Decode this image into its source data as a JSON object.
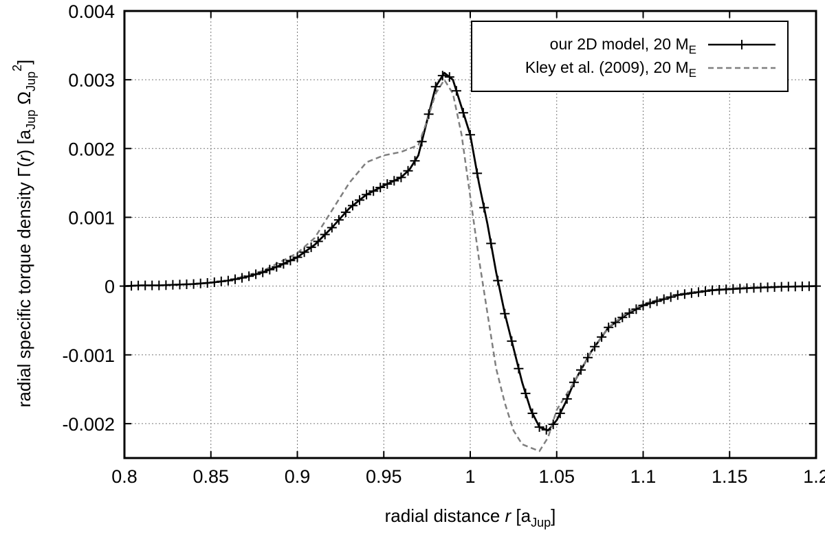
{
  "chart_data": {
    "type": "line",
    "title": "",
    "xlabel": {
      "main": "radial distance ",
      "var": "r",
      "open": " [a",
      "sub": "Jup",
      "close": "]"
    },
    "ylabel": {
      "prefix": "radial specific torque density Γ(",
      "var": "r",
      "mid": ") [a",
      "sub1": "Jup",
      "omega": " Ω",
      "sub2": "Jup",
      "sup": "2",
      "close": "]"
    },
    "xlim": [
      0.8,
      1.2
    ],
    "ylim": [
      -0.0025,
      0.004
    ],
    "grid": true,
    "legend_position": "top-right",
    "x_ticks": [
      {
        "value": 0.8,
        "label": "0.8"
      },
      {
        "value": 0.85,
        "label": "0.85"
      },
      {
        "value": 0.9,
        "label": "0.9"
      },
      {
        "value": 0.95,
        "label": "0.95"
      },
      {
        "value": 1.0,
        "label": "1"
      },
      {
        "value": 1.05,
        "label": "1.05"
      },
      {
        "value": 1.1,
        "label": "1.1"
      },
      {
        "value": 1.15,
        "label": "1.15"
      },
      {
        "value": 1.2,
        "label": "1.2"
      }
    ],
    "y_ticks": [
      {
        "value": -0.002,
        "label": "-0.002"
      },
      {
        "value": -0.001,
        "label": "-0.001"
      },
      {
        "value": 0,
        "label": "0"
      },
      {
        "value": 0.001,
        "label": "0.001"
      },
      {
        "value": 0.002,
        "label": "0.002"
      },
      {
        "value": 0.003,
        "label": "0.003"
      },
      {
        "value": 0.004,
        "label": "0.004"
      }
    ],
    "series": [
      {
        "name": "our 2D model, 20 M",
        "name_sub": "E",
        "style": "solid-with-plus",
        "color": "#000000",
        "points": [
          [
            0.8,
            0.0
          ],
          [
            0.81,
            1e-05
          ],
          [
            0.82,
            1e-05
          ],
          [
            0.83,
            2e-05
          ],
          [
            0.84,
            3e-05
          ],
          [
            0.85,
            5e-05
          ],
          [
            0.86,
            8e-05
          ],
          [
            0.87,
            0.00013
          ],
          [
            0.88,
            0.0002
          ],
          [
            0.89,
            0.0003
          ],
          [
            0.9,
            0.00042
          ],
          [
            0.91,
            0.0006
          ],
          [
            0.92,
            0.00085
          ],
          [
            0.93,
            0.00113
          ],
          [
            0.94,
            0.00133
          ],
          [
            0.95,
            0.00146
          ],
          [
            0.96,
            0.00158
          ],
          [
            0.965,
            0.0017
          ],
          [
            0.97,
            0.0019
          ],
          [
            0.975,
            0.0024
          ],
          [
            0.98,
            0.0029
          ],
          [
            0.985,
            0.0031
          ],
          [
            0.99,
            0.003
          ],
          [
            0.995,
            0.0026
          ],
          [
            1.0,
            0.0022
          ],
          [
            1.005,
            0.0015
          ],
          [
            1.01,
            0.0009
          ],
          [
            1.015,
            0.0002
          ],
          [
            1.02,
            -0.0004
          ],
          [
            1.025,
            -0.0009
          ],
          [
            1.03,
            -0.0014
          ],
          [
            1.035,
            -0.0018
          ],
          [
            1.04,
            -0.00205
          ],
          [
            1.045,
            -0.0021
          ],
          [
            1.05,
            -0.00195
          ],
          [
            1.055,
            -0.0017
          ],
          [
            1.06,
            -0.0014
          ],
          [
            1.07,
            -0.00095
          ],
          [
            1.08,
            -0.0006
          ],
          [
            1.09,
            -0.00042
          ],
          [
            1.1,
            -0.00028
          ],
          [
            1.12,
            -0.00013
          ],
          [
            1.14,
            -6e-05
          ],
          [
            1.16,
            -3e-05
          ],
          [
            1.18,
            -1e-05
          ],
          [
            1.2,
            0.0
          ]
        ]
      },
      {
        "name": "Kley et al. (2009), 20 M",
        "name_sub": "E",
        "style": "dashed",
        "color": "#7f7f7f",
        "points": [
          [
            0.8,
            0.0
          ],
          [
            0.82,
            1e-05
          ],
          [
            0.84,
            3e-05
          ],
          [
            0.86,
            8e-05
          ],
          [
            0.88,
            0.00022
          ],
          [
            0.9,
            0.00048
          ],
          [
            0.91,
            0.0007
          ],
          [
            0.92,
            0.0011
          ],
          [
            0.93,
            0.0015
          ],
          [
            0.94,
            0.0018
          ],
          [
            0.95,
            0.0019
          ],
          [
            0.96,
            0.00195
          ],
          [
            0.97,
            0.00205
          ],
          [
            0.975,
            0.0024
          ],
          [
            0.98,
            0.0028
          ],
          [
            0.985,
            0.003
          ],
          [
            0.99,
            0.0028
          ],
          [
            0.995,
            0.0022
          ],
          [
            1.0,
            0.0013
          ],
          [
            1.005,
            0.0004
          ],
          [
            1.01,
            -0.0004
          ],
          [
            1.015,
            -0.0012
          ],
          [
            1.02,
            -0.0017
          ],
          [
            1.025,
            -0.0021
          ],
          [
            1.03,
            -0.0023
          ],
          [
            1.035,
            -0.00235
          ],
          [
            1.04,
            -0.0024
          ],
          [
            1.045,
            -0.0022
          ],
          [
            1.05,
            -0.0018
          ],
          [
            1.06,
            -0.0014
          ],
          [
            1.07,
            -0.00095
          ],
          [
            1.08,
            -0.0006
          ],
          [
            1.09,
            -0.0004
          ],
          [
            1.1,
            -0.00026
          ],
          [
            1.12,
            -0.00012
          ],
          [
            1.14,
            -5e-05
          ],
          [
            1.16,
            -2e-05
          ],
          [
            1.2,
            0.0
          ]
        ]
      }
    ]
  }
}
